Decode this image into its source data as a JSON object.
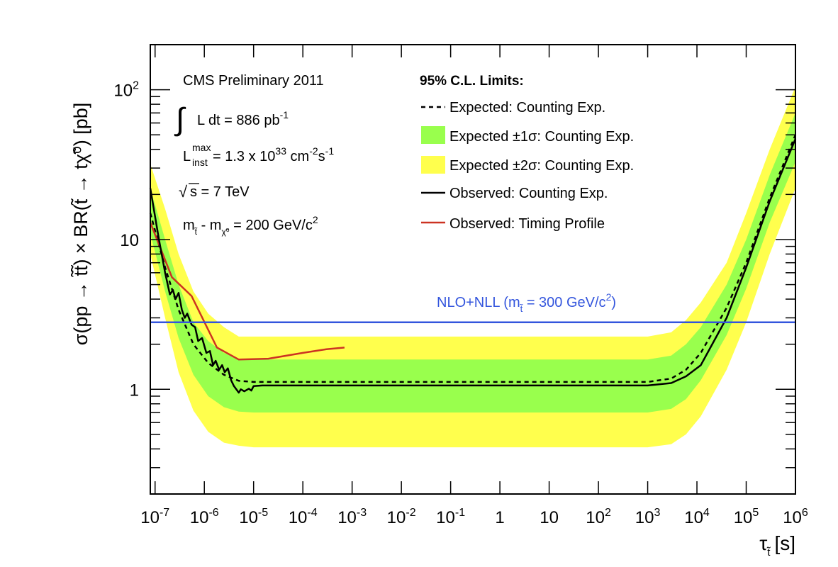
{
  "chart_data": {
    "type": "line",
    "title": "",
    "xlabel_symbol": "τ",
    "xlabel_sub": "t̃",
    "xlabel_unit": "[s]",
    "ylabel": "σ(pp → t̃t̃) × BR(t̃ → tχ̃⁰) [pb]",
    "xscale": "log",
    "yscale": "log",
    "xlim": [
      8e-08,
      1000000.0
    ],
    "ylim": [
      0.2,
      200
    ],
    "x_ticks": [
      {
        "value": 1e-07,
        "base": "10",
        "exp": "-7"
      },
      {
        "value": 1e-06,
        "base": "10",
        "exp": "-6"
      },
      {
        "value": 1e-05,
        "base": "10",
        "exp": "-5"
      },
      {
        "value": 0.0001,
        "base": "10",
        "exp": "-4"
      },
      {
        "value": 0.001,
        "base": "10",
        "exp": "-3"
      },
      {
        "value": 0.01,
        "base": "10",
        "exp": "-2"
      },
      {
        "value": 0.1,
        "base": "10",
        "exp": "-1"
      },
      {
        "value": 1,
        "base": "1",
        "exp": ""
      },
      {
        "value": 10,
        "base": "10",
        "exp": ""
      },
      {
        "value": 100,
        "base": "10",
        "exp": "2"
      },
      {
        "value": 1000,
        "base": "10",
        "exp": "3"
      },
      {
        "value": 10000,
        "base": "10",
        "exp": "4"
      },
      {
        "value": 100000,
        "base": "10",
        "exp": "5"
      },
      {
        "value": 1000000,
        "base": "10",
        "exp": "6"
      }
    ],
    "y_ticks": [
      {
        "value": 1,
        "base": "1",
        "exp": ""
      },
      {
        "value": 10,
        "base": "10",
        "exp": ""
      },
      {
        "value": 100,
        "base": "10",
        "exp": "2"
      }
    ],
    "annotations": {
      "experiment": "CMS Preliminary 2011",
      "lumi_text": "L dt = 886 pb",
      "lumi_exp": "-1",
      "inst_lumi_L": "L",
      "inst_lumi_sup": "max",
      "inst_lumi_sub": "inst",
      "inst_lumi_text": " = 1.3 x 10",
      "inst_lumi_exp": "33",
      "inst_lumi_unit": " cm",
      "inst_lumi_unit_exp1": "-2",
      "inst_lumi_unit_s": "s",
      "inst_lumi_unit_exp2": "-1",
      "sqrt_s": "s = 7 TeV",
      "mass_diff_m1": "m",
      "mass_diff_sub1": "t̃",
      "mass_diff_dash": " - m",
      "mass_diff_sub2": "χ̃⁰",
      "mass_diff_text": " = 200 GeV/c",
      "mass_diff_exp": "2"
    },
    "legend_title": "95% C.L. Limits:",
    "legend": [
      {
        "key": "expected",
        "label": "Expected: Counting Exp.",
        "style": "dashed"
      },
      {
        "key": "band1",
        "label": "Expected ±1σ: Counting Exp.",
        "style": "fill-green"
      },
      {
        "key": "band2",
        "label": "Expected ±2σ: Counting Exp.",
        "style": "fill-yellow"
      },
      {
        "key": "observed",
        "label": "Observed: Counting Exp.",
        "style": "solid-black"
      },
      {
        "key": "timing",
        "label": "Observed: Timing Profile",
        "style": "solid-red"
      }
    ],
    "theory_line": {
      "label_pre": "NLO+NLL (m",
      "label_sub": "t̃",
      "label_post": " = 300 GeV/c",
      "label_exp": "2",
      "label_close": ")",
      "y": 2.8
    },
    "colors": {
      "yellow": "#ffff4d",
      "green": "#99ff4d",
      "expected": "#000000",
      "observed": "#000000",
      "timing": "#cc3322",
      "theory": "#3355dd"
    },
    "series": {
      "band2_upper": [
        [
          8e-08,
          32
        ],
        [
          1.6e-07,
          16
        ],
        [
          3e-07,
          8
        ],
        [
          6e-07,
          4.5
        ],
        [
          1.2e-06,
          3.2
        ],
        [
          2.5e-06,
          2.6
        ],
        [
          5e-06,
          2.25
        ],
        [
          1e-05,
          2.25
        ],
        [
          1,
          2.25
        ],
        [
          1000,
          2.25
        ],
        [
          3000,
          2.4
        ],
        [
          6000,
          2.9
        ],
        [
          12000,
          3.8
        ],
        [
          40000,
          7
        ],
        [
          100000.0,
          15
        ],
        [
          300000.0,
          40
        ],
        [
          1000000.0,
          105
        ]
      ],
      "band1_upper": [
        [
          8e-08,
          22
        ],
        [
          1.6e-07,
          10
        ],
        [
          3e-07,
          5
        ],
        [
          6e-07,
          2.8
        ],
        [
          1.2e-06,
          2.1
        ],
        [
          2.5e-06,
          1.75
        ],
        [
          5e-06,
          1.6
        ],
        [
          1e-05,
          1.58
        ],
        [
          1,
          1.58
        ],
        [
          1000,
          1.58
        ],
        [
          3000,
          1.68
        ],
        [
          6000,
          2.0
        ],
        [
          12000,
          2.6
        ],
        [
          40000,
          5
        ],
        [
          100000.0,
          10
        ],
        [
          300000.0,
          27
        ],
        [
          1000000.0,
          70
        ]
      ],
      "band1_lower": [
        [
          8e-08,
          11
        ],
        [
          1.6e-07,
          4.5
        ],
        [
          3e-07,
          2.2
        ],
        [
          6e-07,
          1.25
        ],
        [
          1.2e-06,
          0.9
        ],
        [
          2.5e-06,
          0.76
        ],
        [
          5e-06,
          0.71
        ],
        [
          1e-05,
          0.7
        ],
        [
          1,
          0.7
        ],
        [
          1000,
          0.7
        ],
        [
          3000,
          0.74
        ],
        [
          6000,
          0.86
        ],
        [
          12000,
          1.15
        ],
        [
          40000,
          2.3
        ],
        [
          100000.0,
          4.7
        ],
        [
          300000.0,
          13
        ],
        [
          1000000.0,
          33
        ]
      ],
      "band2_lower": [
        [
          8e-08,
          8
        ],
        [
          1.6e-07,
          3.0
        ],
        [
          3e-07,
          1.3
        ],
        [
          6e-07,
          0.72
        ],
        [
          1.2e-06,
          0.52
        ],
        [
          2.5e-06,
          0.44
        ],
        [
          5e-06,
          0.42
        ],
        [
          1e-05,
          0.41
        ],
        [
          1,
          0.41
        ],
        [
          1000,
          0.41
        ],
        [
          3000,
          0.43
        ],
        [
          6000,
          0.5
        ],
        [
          12000,
          0.66
        ],
        [
          40000,
          1.35
        ],
        [
          100000.0,
          2.8
        ],
        [
          300000.0,
          8
        ],
        [
          1000000.0,
          22
        ]
      ],
      "expected": [
        [
          8e-08,
          15
        ],
        [
          1.6e-07,
          6.5
        ],
        [
          3e-07,
          3.4
        ],
        [
          6e-07,
          2.0
        ],
        [
          1.2e-06,
          1.5
        ],
        [
          2.5e-06,
          1.25
        ],
        [
          5e-06,
          1.14
        ],
        [
          1e-05,
          1.12
        ],
        [
          1,
          1.12
        ],
        [
          1000,
          1.12
        ],
        [
          3000,
          1.18
        ],
        [
          6000,
          1.35
        ],
        [
          12000,
          1.75
        ],
        [
          40000,
          3.5
        ],
        [
          100000.0,
          7
        ],
        [
          300000.0,
          19
        ],
        [
          1000000.0,
          50
        ]
      ],
      "observed": [
        [
          8e-08,
          22
        ],
        [
          1.2e-07,
          10
        ],
        [
          1.6e-07,
          6
        ],
        [
          2e-07,
          4.3
        ],
        [
          2.3e-07,
          4.6
        ],
        [
          2.6e-07,
          4.0
        ],
        [
          3e-07,
          4.4
        ],
        [
          3.5e-07,
          3.4
        ],
        [
          4e-07,
          3.0
        ],
        [
          4.5e-07,
          3.2
        ],
        [
          5.5e-07,
          2.7
        ],
        [
          6.5e-07,
          2.6
        ],
        [
          7.5e-07,
          2.1
        ],
        [
          9e-07,
          2.2
        ],
        [
          1.1e-06,
          1.75
        ],
        [
          1.3e-06,
          1.8
        ],
        [
          1.5e-06,
          1.45
        ],
        [
          1.7e-06,
          1.55
        ],
        [
          2e-06,
          1.35
        ],
        [
          2.3e-06,
          1.45
        ],
        [
          2.6e-06,
          1.3
        ],
        [
          3e-06,
          1.38
        ],
        [
          3.5e-06,
          1.15
        ],
        [
          4e-06,
          1.05
        ],
        [
          5e-06,
          0.95
        ],
        [
          5.5e-06,
          1.0
        ],
        [
          6.5e-06,
          0.97
        ],
        [
          8e-06,
          1.01
        ],
        [
          9e-06,
          0.98
        ],
        [
          1e-05,
          1.05
        ],
        [
          1.5e-05,
          1.06
        ],
        [
          0.001,
          1.06
        ],
        [
          1,
          1.06
        ],
        [
          1000,
          1.06
        ],
        [
          3000,
          1.1
        ],
        [
          6000,
          1.22
        ],
        [
          12000,
          1.45
        ],
        [
          40000,
          3.0
        ],
        [
          100000.0,
          6.5
        ],
        [
          300000.0,
          18
        ],
        [
          1000000.0,
          47
        ]
      ],
      "timing": [
        [
          8e-08,
          13
        ],
        [
          2.2e-07,
          5.6
        ],
        [
          5.5e-07,
          4.2
        ],
        [
          1.8e-06,
          1.9
        ],
        [
          5e-06,
          1.58
        ],
        [
          2e-05,
          1.6
        ],
        [
          0.0001,
          1.75
        ],
        [
          0.0003,
          1.85
        ],
        [
          0.0007,
          1.9
        ]
      ]
    }
  }
}
